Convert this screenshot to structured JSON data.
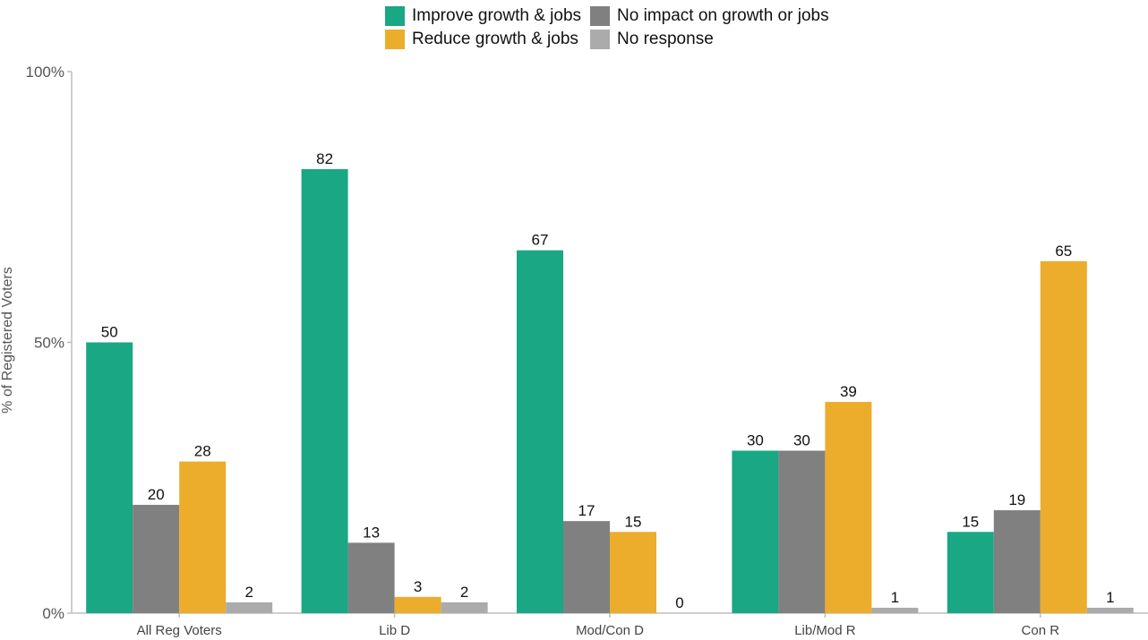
{
  "chart_data": {
    "type": "bar",
    "title": "",
    "xlabel": "",
    "ylabel": "% of Registered Voters",
    "ylim": [
      0,
      100
    ],
    "yticks": [
      {
        "value": 0,
        "label": "0%"
      },
      {
        "value": 50,
        "label": "50%"
      },
      {
        "value": 100,
        "label": "100%"
      }
    ],
    "categories": [
      "All Reg Voters",
      "Lib D",
      "Mod/Con D",
      "Lib/Mod R",
      "Con R"
    ],
    "series": [
      {
        "name": "Improve growth & jobs",
        "color": "#1aa783",
        "values": [
          50,
          82,
          67,
          30,
          15
        ]
      },
      {
        "name": "No impact on growth or jobs",
        "color": "#808080",
        "values": [
          20,
          13,
          17,
          30,
          19
        ]
      },
      {
        "name": "Reduce growth & jobs",
        "color": "#ecac2c",
        "values": [
          28,
          3,
          15,
          39,
          65
        ]
      },
      {
        "name": "No response",
        "color": "#ababab",
        "values": [
          2,
          2,
          0,
          1,
          1
        ]
      }
    ],
    "legend_position": "top-center",
    "grid": false
  }
}
